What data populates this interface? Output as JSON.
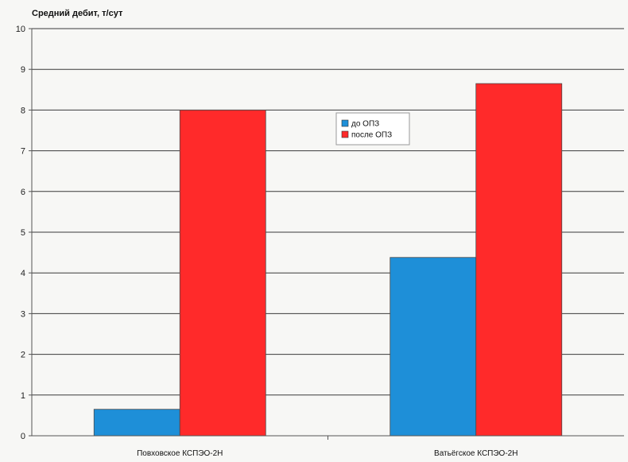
{
  "chart_data": {
    "type": "bar",
    "title": "Средний дебит, т/сут",
    "xlabel": "",
    "ylabel": "Средний дебит, т/сут",
    "categories": [
      "Повховское КСПЭО-2Н",
      "Ватьёгское КСПЭО-2Н"
    ],
    "series": [
      {
        "name": "до ОПЗ",
        "values": [
          0.65,
          4.38
        ],
        "color": "#1e8fd8"
      },
      {
        "name": "после ОПЗ",
        "values": [
          8.0,
          8.65
        ],
        "color": "#ff2a2a"
      }
    ],
    "ylim": [
      0,
      10
    ],
    "yticks": [
      0,
      1,
      2,
      3,
      4,
      5,
      6,
      7,
      8,
      9,
      10
    ],
    "grid": true,
    "legend_position": "top-center"
  }
}
